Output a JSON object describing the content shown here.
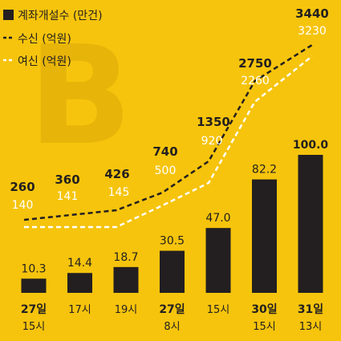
{
  "chart_data": {
    "type": "bar",
    "categories": [
      {
        "date": "27일",
        "time": "15시"
      },
      {
        "date": "",
        "time": "17시"
      },
      {
        "date": "",
        "time": "19시"
      },
      {
        "date": "27일",
        "time": "8시"
      },
      {
        "date": "",
        "time": "15시"
      },
      {
        "date": "30일",
        "time": "15시"
      },
      {
        "date": "31일",
        "time": "13시"
      }
    ],
    "series": [
      {
        "name": "계좌개설수 (만건)",
        "type": "bar",
        "color": "#231F20",
        "values": [
          10.3,
          14.4,
          18.7,
          30.5,
          47.0,
          82.2,
          100.0
        ],
        "labels": [
          "10.3",
          "14.4",
          "18.7",
          "30.5",
          "47.0",
          "82.2",
          "100.0"
        ]
      },
      {
        "name": "수신 (억원)",
        "type": "line",
        "style": "dashed",
        "color": "#231F20",
        "values": [
          260,
          360,
          426,
          740,
          1350,
          2750,
          3440
        ],
        "labels": [
          "260",
          "360",
          "426",
          "740",
          "1350",
          "2750",
          "3440"
        ]
      },
      {
        "name": "여신 (억원)",
        "type": "line",
        "style": "dashed",
        "color": "#FFFFFF",
        "values": [
          140,
          141,
          145,
          500,
          920,
          2260,
          3230
        ],
        "labels": [
          "140",
          "141",
          "145",
          "500",
          "920",
          "2260",
          "3230"
        ]
      }
    ],
    "legend": "top-left",
    "watermark": "B",
    "grid": false
  }
}
